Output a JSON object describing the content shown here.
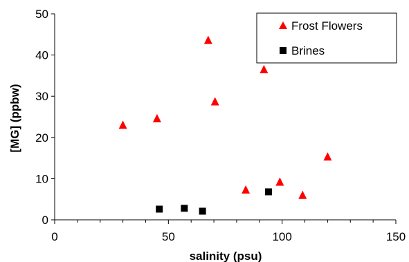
{
  "chart_data": {
    "type": "scatter",
    "title": "",
    "xlabel": "salinity (psu)",
    "ylabel": "[MG] (ppbw)",
    "xlim": [
      0,
      150
    ],
    "ylim": [
      0,
      50
    ],
    "x_ticks": [
      0,
      50,
      100,
      150
    ],
    "y_ticks": [
      0,
      10,
      20,
      30,
      40,
      50
    ],
    "grid": false,
    "legend_position": "top-right",
    "series": [
      {
        "name": "Frost Flowers",
        "marker": "triangle",
        "color": "#ff0000",
        "points": [
          {
            "x": 30,
            "y": 23.0
          },
          {
            "x": 45,
            "y": 24.6
          },
          {
            "x": 67.5,
            "y": 43.6
          },
          {
            "x": 70.5,
            "y": 28.7
          },
          {
            "x": 84,
            "y": 7.3
          },
          {
            "x": 92,
            "y": 36.5
          },
          {
            "x": 99,
            "y": 9.2
          },
          {
            "x": 109,
            "y": 6.0
          },
          {
            "x": 120,
            "y": 15.3
          }
        ]
      },
      {
        "name": "Brines",
        "marker": "square",
        "color": "#000000",
        "points": [
          {
            "x": 46,
            "y": 2.6
          },
          {
            "x": 57,
            "y": 2.8
          },
          {
            "x": 65,
            "y": 2.1
          },
          {
            "x": 94,
            "y": 6.8
          }
        ]
      }
    ]
  }
}
